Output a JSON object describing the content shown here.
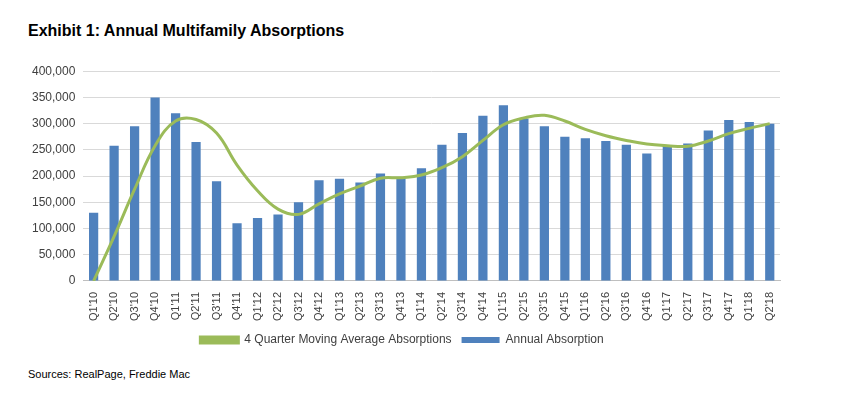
{
  "chart_data": {
    "type": "bar",
    "title": "Exhibit 1: Annual Multifamily Absorptions",
    "source": "Sources: RealPage, Freddie Mac",
    "categories": [
      "Q1'10",
      "Q2'10",
      "Q3'10",
      "Q4'10",
      "Q1'11",
      "Q2'11",
      "Q3'11",
      "Q4'11",
      "Q1'12",
      "Q2'12",
      "Q3'12",
      "Q4'12",
      "Q1'13",
      "Q2'13",
      "Q3'13",
      "Q4'13",
      "Q1'14",
      "Q2'14",
      "Q3'14",
      "Q4'14",
      "Q1'15",
      "Q2'15",
      "Q3'15",
      "Q4'15",
      "Q1'16",
      "Q2'16",
      "Q3'16",
      "Q4'16",
      "Q1'17",
      "Q2'17",
      "Q3'17",
      "Q4'17",
      "Q1'18",
      "Q2'18"
    ],
    "series": [
      {
        "name": "Annual Absorption",
        "type": "bar",
        "color": "#4f81bd",
        "values": [
          130000,
          258000,
          295000,
          350000,
          320000,
          265000,
          190000,
          110000,
          120000,
          127000,
          150000,
          192000,
          195000,
          188000,
          205000,
          196000,
          215000,
          260000,
          282000,
          315000,
          335000,
          310000,
          295000,
          275000,
          272000,
          267000,
          260000,
          243000,
          258000,
          262000,
          287000,
          307000,
          303000,
          300000
        ]
      },
      {
        "name": "4 Quarter Moving Average Absorptions",
        "type": "line",
        "color": "#9bbb59",
        "marker": "none",
        "line_style": "solid",
        "values": [
          0,
          85000,
          175000,
          258000,
          305000,
          308000,
          282000,
          221000,
          172000,
          137000,
          127000,
          147000,
          166000,
          181000,
          196000,
          197000,
          202000,
          216000,
          237000,
          268000,
          298000,
          311000,
          316000,
          305000,
          289000,
          277000,
          268000,
          261000,
          258000,
          257000,
          267000,
          281000,
          291000,
          300000
        ]
      }
    ],
    "ylim": [
      0,
      400000
    ],
    "yticks": [
      {
        "value": 0,
        "label": "0"
      },
      {
        "value": 50000,
        "label": "50,000"
      },
      {
        "value": 100000,
        "label": "100,000"
      },
      {
        "value": 150000,
        "label": "150,000"
      },
      {
        "value": 200000,
        "label": "200,000"
      },
      {
        "value": 250000,
        "label": "250,000"
      },
      {
        "value": 300000,
        "label": "300,000"
      },
      {
        "value": 350000,
        "label": "350,000"
      },
      {
        "value": 400000,
        "label": "400,000"
      }
    ],
    "grid": true,
    "legend": "bottom"
  }
}
